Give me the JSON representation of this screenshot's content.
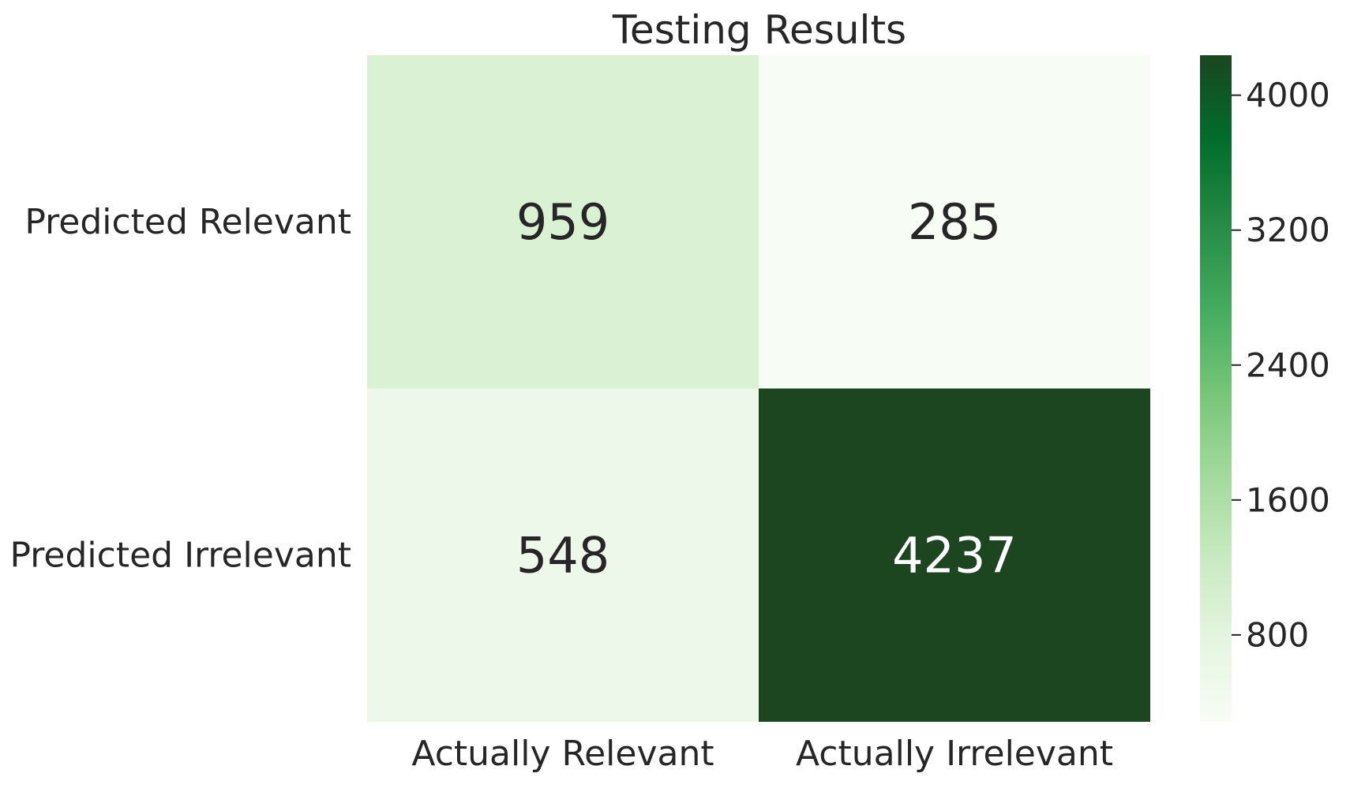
{
  "chart_data": {
    "type": "heatmap",
    "title": "Testing Results",
    "xlabel": "",
    "ylabel": "",
    "x_categories": [
      "Actually Relevant",
      "Actually Irrelevant"
    ],
    "y_categories": [
      "Predicted Relevant",
      "Predicted Irrelevant"
    ],
    "values": [
      [
        959,
        285
      ],
      [
        548,
        4237
      ]
    ],
    "colorscale": {
      "name": "Greens",
      "min": 285,
      "max": 4237,
      "ticks": [
        800,
        1600,
        2400,
        3200,
        4000
      ],
      "tick_labels": [
        "800",
        "1600",
        "2400",
        "3200",
        "4000"
      ],
      "colors": [
        "#f7fcf5",
        "#e5f5e0",
        "#c7e9c0",
        "#a1d99b",
        "#74c476",
        "#41ab5d",
        "#238b45",
        "#006d2c",
        "#1b4620"
      ]
    },
    "annotation_colors": {
      "dark": "#262626",
      "light": "#ffffff"
    },
    "grid": false,
    "colorbar_placement": "right"
  }
}
